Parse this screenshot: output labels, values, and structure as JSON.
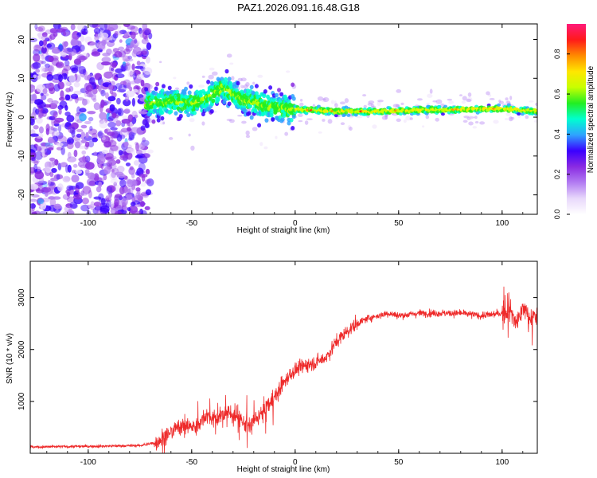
{
  "title": "PAZ1.2026.091.16.48.G18",
  "colors": {
    "snr_line": "#ee2a2a",
    "axis": "#000000",
    "background": "#ffffff",
    "colormap": [
      "#ffffff",
      "#e8d8fb",
      "#b27cf2",
      "#8a2be2",
      "#3a00ff",
      "#2fa3ff",
      "#00ffd0",
      "#22ee22",
      "#c8ff00",
      "#ffe600",
      "#ff8a00",
      "#ff1a1a",
      "#ff1a7a"
    ]
  },
  "chart_data": [
    {
      "type": "heatmap",
      "name": "spectrogram",
      "xlabel": "Height of straight line (km)",
      "ylabel": "Frequency (Hz)",
      "xlim": [
        -128,
        117
      ],
      "ylim": [
        -25,
        24
      ],
      "xticks": [
        -100,
        -50,
        0,
        50,
        100
      ],
      "yticks": [
        -20,
        -10,
        0,
        10,
        20
      ],
      "colorbar": {
        "label": "Normalized spectral amplitude",
        "range": [
          0,
          0.95
        ],
        "ticks": [
          0.0,
          0.2,
          0.4,
          0.6,
          0.8
        ]
      },
      "ridge": [
        {
          "x": -70,
          "y": 3.5
        },
        {
          "x": -60,
          "y": 4.0
        },
        {
          "x": -50,
          "y": 3.5
        },
        {
          "x": -42,
          "y": 5.0
        },
        {
          "x": -35,
          "y": 7.5
        },
        {
          "x": -30,
          "y": 6.0
        },
        {
          "x": -25,
          "y": 4.5
        },
        {
          "x": -18,
          "y": 3.5
        },
        {
          "x": -10,
          "y": 2.5
        },
        {
          "x": 0,
          "y": 2.0
        },
        {
          "x": 20,
          "y": 1.5
        },
        {
          "x": 40,
          "y": 1.5
        },
        {
          "x": 60,
          "y": 1.8
        },
        {
          "x": 80,
          "y": 2.0
        },
        {
          "x": 100,
          "y": 2.2
        },
        {
          "x": 117,
          "y": 1.5
        }
      ],
      "noise_region_x": [
        -128,
        -70
      ]
    },
    {
      "type": "line",
      "name": "snr",
      "xlabel": "Height of straight line (km)",
      "ylabel": "SNR (10 * v/v)",
      "xlim": [
        -128,
        117
      ],
      "ylim": [
        0,
        3700
      ],
      "xticks": [
        -100,
        -50,
        0,
        50,
        100
      ],
      "yticks": [
        1000,
        2000,
        3000
      ],
      "series": [
        {
          "name": "SNR",
          "x": [
            -128,
            -110,
            -90,
            -75,
            -68,
            -62,
            -55,
            -48,
            -43,
            -38,
            -33,
            -28,
            -23,
            -18,
            -13,
            -8,
            -3,
            0,
            5,
            10,
            15,
            20,
            25,
            30,
            35,
            40,
            45,
            50,
            60,
            70,
            80,
            90,
            100,
            104,
            107,
            109,
            111,
            113,
            117
          ],
          "y": [
            120,
            130,
            140,
            150,
            200,
            350,
            550,
            500,
            750,
            650,
            800,
            700,
            500,
            700,
            900,
            1200,
            1500,
            1600,
            1700,
            1750,
            1850,
            2150,
            2350,
            2500,
            2600,
            2650,
            2700,
            2650,
            2700,
            2700,
            2700,
            2650,
            2700,
            2750,
            2500,
            2700,
            2800,
            2600,
            2650
          ]
        }
      ]
    }
  ]
}
